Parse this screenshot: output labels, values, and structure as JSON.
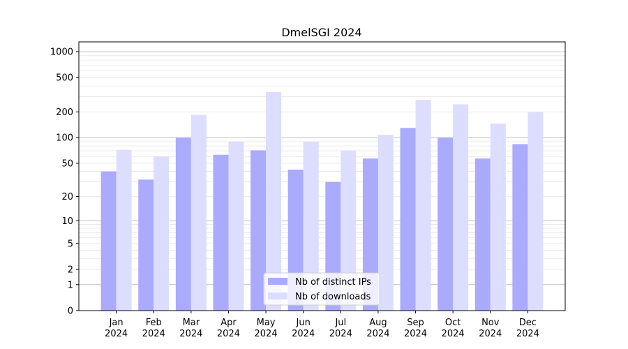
{
  "chart_data": {
    "type": "bar",
    "title": "DmelSGI 2024",
    "xlabel": "",
    "ylabel": "",
    "scale": "log1p",
    "ylim": [
      0,
      1300
    ],
    "y_ticks": [
      0,
      1,
      2,
      5,
      10,
      20,
      50,
      100,
      200,
      500,
      1000
    ],
    "y_tick_labels": [
      "0",
      "1",
      "2",
      "5",
      "10",
      "20",
      "50",
      "100",
      "200",
      "500",
      "1000"
    ],
    "categories": [
      [
        "Jan",
        "2024"
      ],
      [
        "Feb",
        "2024"
      ],
      [
        "Mar",
        "2024"
      ],
      [
        "Apr",
        "2024"
      ],
      [
        "May",
        "2024"
      ],
      [
        "Jun",
        "2024"
      ],
      [
        "Jul",
        "2024"
      ],
      [
        "Aug",
        "2024"
      ],
      [
        "Sep",
        "2024"
      ],
      [
        "Oct",
        "2024"
      ],
      [
        "Nov",
        "2024"
      ],
      [
        "Dec",
        "2024"
      ]
    ],
    "series": [
      {
        "name": "Nb of distinct IPs",
        "color": "#aaaaff",
        "values": [
          40,
          32,
          100,
          63,
          71,
          42,
          30,
          57,
          130,
          100,
          57,
          84
        ]
      },
      {
        "name": "Nb of downloads",
        "color": "#ddddff",
        "values": [
          72,
          60,
          185,
          90,
          340,
          90,
          71,
          108,
          275,
          245,
          146,
          198
        ]
      }
    ],
    "grid": true,
    "legend_position": "bottom-center"
  }
}
